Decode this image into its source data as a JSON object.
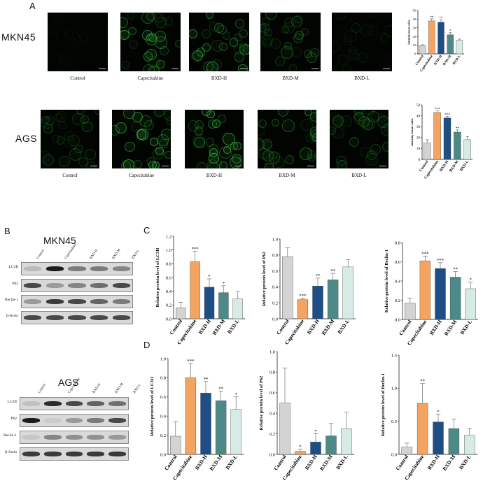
{
  "panels": {
    "a": "A",
    "b": "B",
    "c": "C",
    "d": "D"
  },
  "microscopy": {
    "rows": [
      {
        "label": "MKN45",
        "intensity": [
          0.05,
          0.55,
          0.6,
          0.35,
          0.12
        ]
      },
      {
        "label": "AGS",
        "intensity": [
          0.3,
          0.75,
          0.7,
          0.45,
          0.35
        ]
      }
    ],
    "groups": [
      "Control",
      "Capecitabine",
      "BXD-H",
      "BXD-M",
      "BXD-L"
    ]
  },
  "blots": {
    "mkn45": {
      "title": "MKN45",
      "lanes": [
        "Control",
        "Capecitabine",
        "BXD-H",
        "BXD-M",
        "BXD-L"
      ],
      "bands": [
        "LC3II",
        "P62",
        "Beclin-1",
        "β-Actin"
      ]
    },
    "ags": {
      "title": "AGS",
      "lanes": [
        "Control",
        "Capecitabine",
        "BXD-H",
        "BXD-M",
        "BXD-L"
      ],
      "bands": [
        "LC3II",
        "P62",
        "Beclin-1",
        "β-Actin"
      ]
    }
  },
  "colors": {
    "Control": "#d3d3d3",
    "Capecitabine": "#f4a460",
    "BXD-H": "#1f4e86",
    "BXD-M": "#4c8a87",
    "BXD-L": "#d6ebe4"
  },
  "chart_data": [
    {
      "id": "A1",
      "type": "bar",
      "categories": [
        "Control",
        "Capecitabine",
        "BXD-H",
        "BXD-M",
        "BXD-L"
      ],
      "values": [
        9.5,
        38,
        36.5,
        22,
        16
      ],
      "errors": [
        1,
        2.5,
        3,
        2.5,
        1
      ],
      "sig": [
        "",
        "**",
        "**",
        "*",
        ""
      ],
      "ylabel": "intensity mean value",
      "ylim": [
        0,
        50
      ],
      "yticks": [
        0,
        10,
        20,
        30,
        40,
        50
      ]
    },
    {
      "id": "A2",
      "type": "bar",
      "categories": [
        "Control",
        "Capecitabine",
        "BXD-H",
        "BXD-M",
        "BXD-L"
      ],
      "values": [
        15,
        43,
        38,
        25,
        18
      ],
      "errors": [
        3,
        1.5,
        1.5,
        2,
        3
      ],
      "sig": [
        "",
        "***",
        "***",
        "**",
        ""
      ],
      "ylabel": "intensity mean value",
      "ylim": [
        0,
        50
      ],
      "yticks": [
        0,
        10,
        20,
        30,
        40,
        50
      ]
    },
    {
      "id": "C1",
      "type": "bar",
      "categories": [
        "Control",
        "Capecitabine",
        "BXD-H",
        "BXD-M",
        "BXD-L"
      ],
      "values": [
        0.16,
        0.83,
        0.46,
        0.38,
        0.29
      ],
      "errors": [
        0.08,
        0.15,
        0.12,
        0.1,
        0.1
      ],
      "sig": [
        "",
        "***",
        "*",
        "*",
        ""
      ],
      "ylabel": "Relative protein level of LC3II",
      "ylim": [
        0,
        1.2
      ],
      "yticks": [
        "0.0",
        "0.2",
        "0.4",
        "0.6",
        "0.8",
        "1.0",
        "1.2"
      ]
    },
    {
      "id": "C2",
      "type": "bar",
      "categories": [
        "Control",
        "Capecitabine",
        "BXD-H",
        "BXD-M",
        "BXD-L"
      ],
      "values": [
        0.78,
        0.24,
        0.41,
        0.49,
        0.65
      ],
      "errors": [
        0.11,
        0.02,
        0.1,
        0.08,
        0.09
      ],
      "sig": [
        "",
        "***",
        "**",
        "**",
        ""
      ],
      "ylabel": "Relative protein level of P62",
      "ylim": [
        0,
        1.0
      ],
      "yticks": [
        "0.0",
        "0.2",
        "0.4",
        "0.6",
        "0.8",
        "1.0"
      ]
    },
    {
      "id": "C3",
      "type": "bar",
      "categories": [
        "Control",
        "Capecitabine",
        "BXD-H",
        "BXD-M",
        "BXD-L"
      ],
      "values": [
        0.17,
        0.61,
        0.53,
        0.44,
        0.32
      ],
      "errors": [
        0.05,
        0.05,
        0.06,
        0.06,
        0.07
      ],
      "sig": [
        "",
        "***",
        "***",
        "**",
        "*"
      ],
      "ylabel": "Relative protein level of Beclin-1",
      "ylim": [
        0,
        0.8
      ],
      "yticks": [
        "0.0",
        "0.2",
        "0.4",
        "0.6",
        "0.8"
      ]
    },
    {
      "id": "D1",
      "type": "bar",
      "categories": [
        "Control",
        "Capecitabine",
        "BXD-H",
        "BXD-M",
        "BXD-L"
      ],
      "values": [
        0.19,
        0.8,
        0.64,
        0.56,
        0.47
      ],
      "errors": [
        0.15,
        0.15,
        0.12,
        0.1,
        0.13
      ],
      "sig": [
        "",
        "***",
        "**",
        "**",
        "*"
      ],
      "ylabel": "Relative protein level of LC3II",
      "ylim": [
        0,
        1.0
      ],
      "yticks": [
        "0.0",
        "0.2",
        "0.4",
        "0.6",
        "0.8",
        "1.0"
      ]
    },
    {
      "id": "D2",
      "type": "bar",
      "categories": [
        "Control",
        "Capecitabine",
        "BXD-H",
        "BXD-M",
        "BXD-L"
      ],
      "values": [
        0.5,
        0.03,
        0.12,
        0.18,
        0.25
      ],
      "errors": [
        0.34,
        0.02,
        0.08,
        0.12,
        0.16
      ],
      "sig": [
        "",
        "*",
        "*",
        "",
        ""
      ],
      "ylabel": "Relative protein level of P62",
      "ylim": [
        0,
        1.0
      ],
      "yticks": [
        "0.0",
        "0.2",
        "0.4",
        "0.6",
        "0.8",
        "1.0"
      ]
    },
    {
      "id": "D3",
      "type": "bar",
      "categories": [
        "Control",
        "Capecitabine",
        "BXD-H",
        "BXD-M",
        "BXD-L"
      ],
      "values": [
        0.11,
        0.77,
        0.49,
        0.39,
        0.29
      ],
      "errors": [
        0.06,
        0.3,
        0.12,
        0.14,
        0.1
      ],
      "sig": [
        "",
        "**",
        "*",
        "",
        ""
      ],
      "ylabel": "Relative protein level of Beclin-1",
      "ylim": [
        0,
        1.5
      ],
      "yticks": [
        "0.0",
        "0.5",
        "1.0",
        "1.5"
      ]
    }
  ]
}
